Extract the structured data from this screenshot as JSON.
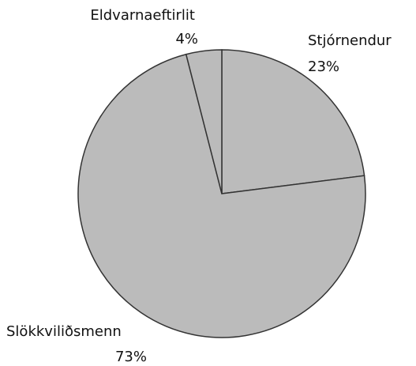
{
  "chart_data": {
    "type": "pie",
    "categories": [
      "Stjórnendur",
      "Slökkviliðsmenn",
      "Eldvarnaeftirlit"
    ],
    "values": [
      23,
      73,
      4
    ],
    "value_labels": [
      "23%",
      "73%",
      "4%"
    ],
    "color": "#bbbbbb"
  }
}
